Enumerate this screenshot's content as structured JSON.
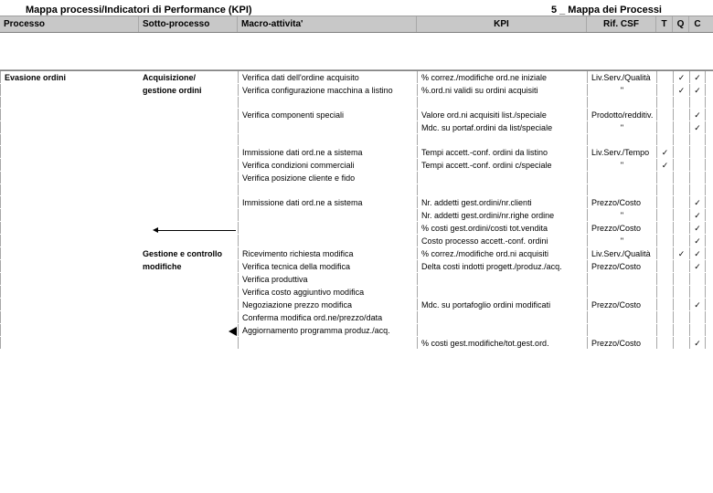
{
  "title": {
    "left": "Mappa processi/Indicatori di Performance (KPI)",
    "right": "5 _ Mappa dei Processi"
  },
  "headers": {
    "processo": "Processo",
    "sotto": "Sotto-processo",
    "macro": "Macro-attivita'",
    "kpi": "KPI",
    "csf": "Rif. CSF",
    "t": "T",
    "q": "Q",
    "c": "C"
  },
  "rows": [
    {
      "proc": "Evasione ordini",
      "sub": "Acquisizione/",
      "macro": "Verifica dati dell'ordine acquisito",
      "kpi": "% correz./modifiche ord.ne iniziale",
      "csf": "Liv.Serv./Qualità",
      "t": "",
      "q": "✓",
      "c": "✓",
      "sepTop": true
    },
    {
      "proc": "",
      "sub": "gestione ordini",
      "macro": "Verifica configurazione macchina a listino",
      "kpi": "%.ord.ni validi su ordini acquisiti",
      "csf": "\"",
      "t": "",
      "q": "✓",
      "c": "✓"
    },
    {
      "blank": true
    },
    {
      "proc": "",
      "sub": "",
      "macro": "Verifica componenti speciali",
      "kpi": "Valore ord.ni acquisiti list./speciale",
      "csf": "Prodotto/redditiv.",
      "t": "",
      "q": "",
      "c": "✓"
    },
    {
      "proc": "",
      "sub": "",
      "macro": "",
      "kpi": "Mdc. su portaf.ordini da list/speciale",
      "csf": "\"",
      "t": "",
      "q": "",
      "c": "✓"
    },
    {
      "blank": true
    },
    {
      "proc": "",
      "sub": "",
      "macro": "Immissione dati ord.ne a sistema",
      "kpi": "Tempi accett.-conf. ordini da listino",
      "csf": "Liv.Serv./Tempo",
      "t": "✓",
      "q": "",
      "c": ""
    },
    {
      "proc": "",
      "sub": "",
      "macro": "Verifica condizioni commerciali",
      "kpi": "Tempi accett.-conf. ordini c/speciale",
      "csf": "\"",
      "t": "✓",
      "q": "",
      "c": ""
    },
    {
      "proc": "",
      "sub": "",
      "macro": "Verifica posizione cliente e fido",
      "kpi": "",
      "csf": "",
      "t": "",
      "q": "",
      "c": ""
    },
    {
      "blank": true
    },
    {
      "proc": "",
      "sub": "",
      "macro": "Immissione dati ord.ne a sistema",
      "kpi": "Nr. addetti gest.ordini/nr.clienti",
      "csf": "Prezzo/Costo",
      "t": "",
      "q": "",
      "c": "✓"
    },
    {
      "proc": "",
      "sub": "",
      "macro": "",
      "kpi": "Nr. addetti gest.ordini/nr.righe ordine",
      "csf": "\"",
      "t": "",
      "q": "",
      "c": "✓",
      "sepBottom": true
    },
    {
      "proc": "",
      "sub": "",
      "macro": "",
      "kpi": "% costi gest.ordini/costi tot.vendita",
      "csf": "Prezzo/Costo",
      "t": "",
      "q": "",
      "c": "✓"
    },
    {
      "proc": "",
      "sub": "",
      "macro": "",
      "kpi": "Costo processo accett.-conf. ordini",
      "csf": "\"",
      "t": "",
      "q": "",
      "c": "✓",
      "sepBottom": true
    },
    {
      "proc": "",
      "sub": "Gestione e controllo",
      "macro": "Ricevimento richiesta modifica",
      "kpi": "% correz./modifiche ord.ni acquisiti",
      "csf": "Liv.Serv./Qualità",
      "t": "",
      "q": "✓",
      "c": "✓"
    },
    {
      "proc": "",
      "sub": "modifiche",
      "macro": "Verifica tecnica della modifica",
      "kpi": "Delta costi indotti progett./produz./acq.",
      "csf": "Prezzo/Costo",
      "t": "",
      "q": "",
      "c": "✓"
    },
    {
      "proc": "",
      "sub": "",
      "macro": "Verifica produttiva",
      "kpi": "",
      "csf": "",
      "t": "",
      "q": "",
      "c": ""
    },
    {
      "proc": "",
      "sub": "",
      "macro": "Verifica costo aggiuntivo modifica",
      "kpi": "",
      "csf": "",
      "t": "",
      "q": "",
      "c": "",
      "sepBottom": true
    },
    {
      "proc": "",
      "sub": "",
      "macro": "Negoziazione prezzo modifica",
      "kpi": "Mdc. su portafoglio ordini modificati",
      "csf": "Prezzo/Costo",
      "t": "",
      "q": "",
      "c": "✓"
    },
    {
      "proc": "",
      "sub": "",
      "macro": "Conferma modifica ord.ne/prezzo/data",
      "kpi": "",
      "csf": "",
      "t": "",
      "q": "",
      "c": ""
    },
    {
      "proc": "",
      "sub": "",
      "macro": "Aggiornamento programma produz./acq.",
      "kpi": "",
      "csf": "",
      "t": "",
      "q": "",
      "c": "",
      "sepBottom": true
    },
    {
      "proc": "",
      "sub": "",
      "macro": "",
      "kpi": "% costi gest.modifiche/tot.gest.ord.",
      "csf": "Prezzo/Costo",
      "t": "",
      "q": "",
      "c": "✓",
      "sepBottom": true
    }
  ]
}
